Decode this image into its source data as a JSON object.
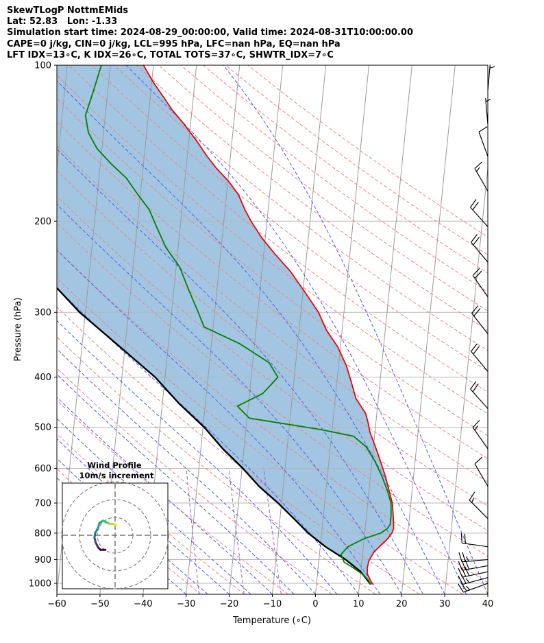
{
  "header": {
    "line1": "SkewTLogP NottmEMids",
    "line2": "Lat: 52.83   Lon: -1.33",
    "line3": "Simulation start time: 2024-08-29_00:00:00, Valid time: 2024-08-31T10:00:00.00",
    "line4": "CAPE=0 j/kg, CIN=0 j/kg, LCL=995 hPa, LFC=nan hPa, EQ=nan hPa",
    "line5": "LFT IDX=13∘C, K IDX=26∘C, TOTAL TOTS=37∘C, SHWTR_IDX=7∘C"
  },
  "chart_data": {
    "type": "line",
    "subtype": "skew-t log-p",
    "xlabel": "Temperature (∘C)",
    "ylabel": "Pressure (hPa)",
    "xlim": [
      -60,
      40
    ],
    "ylim": [
      1050,
      100
    ],
    "y_scale": "log",
    "grid": true,
    "x_ticks": [
      -60,
      -50,
      -40,
      -30,
      -20,
      -10,
      0,
      10,
      20,
      30,
      40
    ],
    "x_tick_labels": [
      "−60",
      "−50",
      "−40",
      "−30",
      "−20",
      "−10",
      "0",
      "10",
      "20",
      "30",
      "40"
    ],
    "y_ticks": [
      1000,
      900,
      800,
      700,
      600,
      500,
      400,
      300,
      200,
      100
    ],
    "y_tick_labels": [
      "1000",
      "900",
      "800",
      "700",
      "600",
      "500",
      "400",
      "300",
      "200",
      "100"
    ],
    "colors": {
      "temperature": "#ee0000",
      "dewpoint": "#008000",
      "parcel": "#000000",
      "cin_fill": "#7aaed4",
      "dry_adiabat": "#f08080",
      "moist_adiabat": "#5555ee",
      "mixing_ratio": "#9966cc",
      "isotherm": "#999999",
      "grid": "#b5b5b5"
    },
    "series": [
      {
        "role": "temperature",
        "points": [
          [
            1005,
            13
          ],
          [
            985,
            12.4
          ],
          [
            960,
            11.6
          ],
          [
            935,
            11.4
          ],
          [
            905,
            11.6
          ],
          [
            870,
            12.6
          ],
          [
            845,
            14
          ],
          [
            820,
            15.5
          ],
          [
            800,
            16.3
          ],
          [
            785,
            16.6
          ],
          [
            770,
            16.5
          ],
          [
            740,
            16.2
          ],
          [
            700,
            15.7
          ],
          [
            660,
            14.6
          ],
          [
            620,
            13.4
          ],
          [
            590,
            12.3
          ],
          [
            560,
            11.1
          ],
          [
            535,
            10
          ],
          [
            510,
            8.8
          ],
          [
            490,
            8.2
          ],
          [
            470,
            7.4
          ],
          [
            440,
            4.8
          ],
          [
            410,
            3.4
          ],
          [
            380,
            1.8
          ],
          [
            350,
            -0.6
          ],
          [
            325,
            -3.6
          ],
          [
            300,
            -5.9
          ],
          [
            275,
            -9.4
          ],
          [
            250,
            -13.4
          ],
          [
            230,
            -17.7
          ],
          [
            215,
            -20.9
          ],
          [
            200,
            -23.7
          ],
          [
            190,
            -25.4
          ],
          [
            178,
            -27.2
          ],
          [
            168,
            -29.7
          ],
          [
            158,
            -33
          ],
          [
            150,
            -35.4
          ],
          [
            140,
            -38.2
          ],
          [
            130,
            -41.5
          ],
          [
            122,
            -44.6
          ],
          [
            115,
            -47
          ],
          [
            108,
            -49.6
          ],
          [
            100,
            -52.3
          ]
        ]
      },
      {
        "role": "dewpoint",
        "points": [
          [
            1005,
            12.6
          ],
          [
            985,
            11.9
          ],
          [
            960,
            10.4
          ],
          [
            935,
            8.3
          ],
          [
            910,
            5.9
          ],
          [
            880,
            5
          ],
          [
            850,
            6.4
          ],
          [
            820,
            10
          ],
          [
            800,
            13.7
          ],
          [
            785,
            15.1
          ],
          [
            770,
            15.7
          ],
          [
            740,
            15.7
          ],
          [
            700,
            15.4
          ],
          [
            660,
            14.2
          ],
          [
            620,
            12.6
          ],
          [
            580,
            10.6
          ],
          [
            545,
            8.3
          ],
          [
            520,
            5.1
          ],
          [
            505,
            -2.6
          ],
          [
            480,
            -19.5
          ],
          [
            455,
            -22.5
          ],
          [
            430,
            -16.9
          ],
          [
            400,
            -13.8
          ],
          [
            375,
            -16.2
          ],
          [
            345,
            -23.4
          ],
          [
            320,
            -32.1
          ],
          [
            300,
            -33.8
          ],
          [
            275,
            -36.2
          ],
          [
            245,
            -39.2
          ],
          [
            225,
            -42.8
          ],
          [
            205,
            -45.5
          ],
          [
            190,
            -47.6
          ],
          [
            178,
            -50.5
          ],
          [
            165,
            -53.7
          ],
          [
            155,
            -57.5
          ],
          [
            145,
            -61.1
          ],
          [
            135,
            -63.5
          ],
          [
            125,
            -64.6
          ],
          [
            112,
            -63.3
          ],
          [
            100,
            -62.1
          ]
        ]
      },
      {
        "role": "parcel",
        "points": [
          [
            1005,
            12.6
          ],
          [
            950,
            10
          ],
          [
            900,
            6.2
          ],
          [
            850,
            1.2
          ],
          [
            800,
            -3.1
          ],
          [
            750,
            -6.8
          ],
          [
            700,
            -10.8
          ],
          [
            650,
            -15.6
          ],
          [
            600,
            -19.8
          ],
          [
            550,
            -24.9
          ],
          [
            500,
            -29.7
          ],
          [
            450,
            -36.1
          ],
          [
            400,
            -42.3
          ],
          [
            350,
            -51.1
          ],
          [
            300,
            -61.3
          ],
          [
            250,
            -71.2
          ],
          [
            200,
            -83.8
          ],
          [
            160,
            -96
          ],
          [
            130,
            -106.5
          ],
          [
            110,
            -115
          ],
          [
            100,
            -119.4
          ]
        ]
      }
    ],
    "wind_barbs": [
      {
        "p": 1000,
        "speed_kt": 25,
        "dir_deg": 250
      },
      {
        "p": 975,
        "speed_kt": 25,
        "dir_deg": 255
      },
      {
        "p": 950,
        "speed_kt": 30,
        "dir_deg": 258
      },
      {
        "p": 925,
        "speed_kt": 30,
        "dir_deg": 260
      },
      {
        "p": 900,
        "speed_kt": 25,
        "dir_deg": 265
      },
      {
        "p": 850,
        "speed_kt": 20,
        "dir_deg": 278
      },
      {
        "p": 750,
        "speed_kt": 15,
        "dir_deg": 315
      },
      {
        "p": 650,
        "speed_kt": 10,
        "dir_deg": 330
      },
      {
        "p": 550,
        "speed_kt": 15,
        "dir_deg": 325
      },
      {
        "p": 460,
        "speed_kt": 20,
        "dir_deg": 318
      },
      {
        "p": 390,
        "speed_kt": 20,
        "dir_deg": 320
      },
      {
        "p": 330,
        "speed_kt": 20,
        "dir_deg": 322
      },
      {
        "p": 280,
        "speed_kt": 20,
        "dir_deg": 325
      },
      {
        "p": 240,
        "speed_kt": 20,
        "dir_deg": 320
      },
      {
        "p": 205,
        "speed_kt": 20,
        "dir_deg": 318
      },
      {
        "p": 175,
        "speed_kt": 15,
        "dir_deg": 330
      },
      {
        "p": 150,
        "speed_kt": 10,
        "dir_deg": 340
      },
      {
        "p": 130,
        "speed_kt": 5,
        "dir_deg": 355
      },
      {
        "p": 112,
        "speed_kt": 5,
        "dir_deg": 5
      }
    ],
    "hodograph": {
      "title": "Wind Profile",
      "subtitle": "10m/s increment",
      "ring_step": 10,
      "rings": 3,
      "points": [
        [
          -4,
          -6
        ],
        [
          -6,
          -6
        ],
        [
          -7,
          -5
        ],
        [
          -8,
          -3
        ],
        [
          -8.5,
          -1
        ],
        [
          -8.2,
          1
        ],
        [
          -7,
          3
        ],
        [
          -6.5,
          5
        ],
        [
          -5,
          6
        ],
        [
          -3,
          5
        ],
        [
          -2,
          4.7
        ],
        [
          0,
          4.5
        ],
        [
          0.5,
          4
        ]
      ]
    }
  }
}
